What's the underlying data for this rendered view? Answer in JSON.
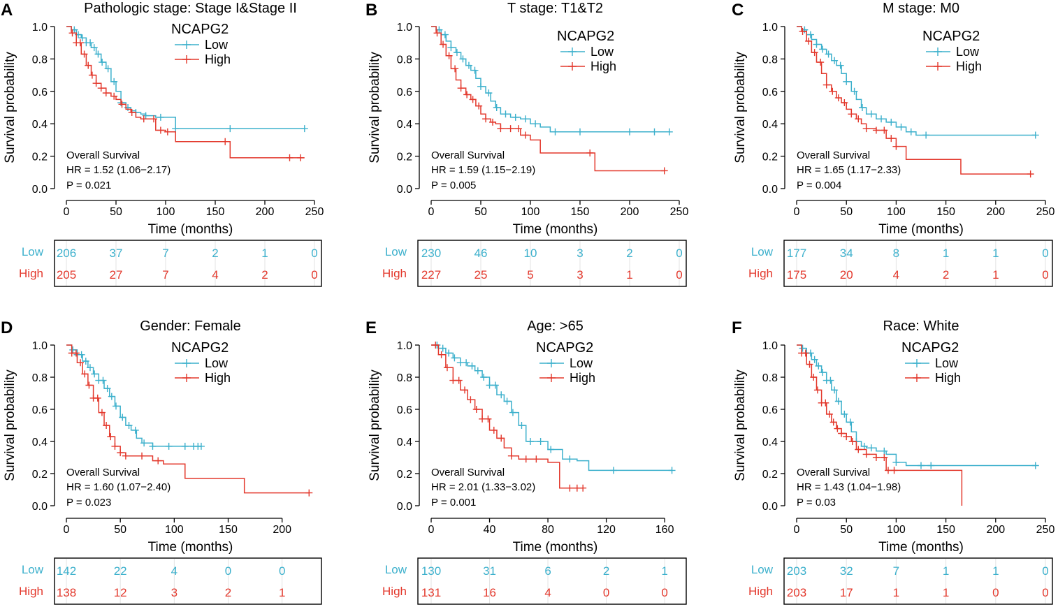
{
  "colors": {
    "low": "#3cb0cc",
    "high": "#e3382c",
    "axis": "#000000"
  },
  "labels": {
    "ylabel": "Survival probability",
    "xlabel": "Time (months)",
    "legend_title": "NCAPG2",
    "low": "Low",
    "high": "High",
    "overall_survival": "Overall Survival"
  },
  "chart_data": [
    {
      "panel": "A",
      "type": "line",
      "title": "Pathologic stage: Stage I&Stage II",
      "xlabel": "Time (months)",
      "ylabel": "Survival probability",
      "xlim": [
        0,
        250
      ],
      "ylim": [
        0,
        1
      ],
      "x_ticks": [
        "0",
        "50",
        "100",
        "150",
        "200",
        "250"
      ],
      "y_ticks": [
        "0.0",
        "0.2",
        "0.4",
        "0.6",
        "0.8",
        "1.0"
      ],
      "legend_title": "NCAPG2",
      "legend_position": "top-center",
      "hr": "HR = 1.52 (1.06−2.17)",
      "p": "P = 0.021",
      "series": [
        {
          "name": "Low",
          "color": "#3cb0cc",
          "x": [
            0,
            5,
            10,
            15,
            20,
            25,
            30,
            35,
            40,
            45,
            50,
            55,
            60,
            65,
            70,
            75,
            80,
            90,
            100,
            110,
            150,
            200,
            240
          ],
          "y": [
            1,
            0.98,
            0.95,
            0.93,
            0.9,
            0.87,
            0.83,
            0.78,
            0.74,
            0.66,
            0.6,
            0.53,
            0.5,
            0.48,
            0.47,
            0.46,
            0.45,
            0.44,
            0.44,
            0.37,
            0.37,
            0.37,
            0.37
          ],
          "censors": [
            8,
            12,
            16,
            20,
            24,
            28,
            32,
            36,
            42,
            48,
            55,
            62,
            70,
            80,
            95,
            110,
            165,
            240
          ]
        },
        {
          "name": "High",
          "color": "#e3382c",
          "x": [
            0,
            5,
            10,
            15,
            20,
            25,
            30,
            35,
            40,
            45,
            50,
            55,
            60,
            65,
            70,
            75,
            80,
            90,
            100,
            110,
            165,
            240
          ],
          "y": [
            1,
            0.96,
            0.9,
            0.83,
            0.76,
            0.7,
            0.65,
            0.62,
            0.59,
            0.57,
            0.55,
            0.52,
            0.49,
            0.47,
            0.44,
            0.43,
            0.43,
            0.36,
            0.35,
            0.29,
            0.19,
            0.19
          ],
          "censors": [
            6,
            10,
            14,
            18,
            22,
            26,
            30,
            35,
            40,
            48,
            56,
            66,
            78,
            88,
            95,
            102,
            160,
            225,
            236
          ]
        }
      ],
      "risk_table": {
        "low": [
          "206",
          "37",
          "7",
          "2",
          "1",
          "0"
        ],
        "high": [
          "205",
          "27",
          "7",
          "4",
          "2",
          "0"
        ]
      }
    },
    {
      "panel": "B",
      "type": "line",
      "title": "T stage: T1&T2",
      "xlabel": "Time (months)",
      "ylabel": "Survival probability",
      "xlim": [
        0,
        250
      ],
      "ylim": [
        0,
        1
      ],
      "x_ticks": [
        "0",
        "50",
        "100",
        "150",
        "200",
        "250"
      ],
      "y_ticks": [
        "0.0",
        "0.2",
        "0.4",
        "0.6",
        "0.8",
        "1.0"
      ],
      "legend_title": "NCAPG2",
      "legend_position": "top-right",
      "hr": "HR = 1.59 (1.15−2.19)",
      "p": "P = 0.005",
      "series": [
        {
          "name": "Low",
          "color": "#3cb0cc",
          "x": [
            0,
            5,
            10,
            15,
            20,
            25,
            30,
            35,
            40,
            45,
            50,
            55,
            60,
            65,
            70,
            80,
            90,
            100,
            110,
            120,
            240
          ],
          "y": [
            1,
            0.98,
            0.95,
            0.91,
            0.87,
            0.84,
            0.8,
            0.76,
            0.73,
            0.68,
            0.63,
            0.59,
            0.54,
            0.5,
            0.46,
            0.44,
            0.43,
            0.4,
            0.38,
            0.35,
            0.35
          ],
          "censors": [
            8,
            14,
            20,
            26,
            32,
            38,
            44,
            50,
            58,
            66,
            75,
            85,
            95,
            105,
            125,
            150,
            200,
            225,
            240
          ]
        },
        {
          "name": "High",
          "color": "#e3382c",
          "x": [
            0,
            5,
            10,
            15,
            20,
            25,
            30,
            35,
            40,
            45,
            50,
            55,
            60,
            65,
            70,
            80,
            90,
            100,
            110,
            150,
            165,
            235
          ],
          "y": [
            1,
            0.96,
            0.89,
            0.82,
            0.74,
            0.67,
            0.62,
            0.58,
            0.55,
            0.51,
            0.46,
            0.43,
            0.41,
            0.4,
            0.37,
            0.37,
            0.33,
            0.3,
            0.22,
            0.22,
            0.11,
            0.11
          ],
          "censors": [
            6,
            12,
            18,
            24,
            30,
            36,
            42,
            48,
            55,
            62,
            70,
            80,
            88,
            95,
            160,
            235
          ]
        }
      ],
      "risk_table": {
        "low": [
          "230",
          "46",
          "10",
          "3",
          "2",
          "0"
        ],
        "high": [
          "227",
          "25",
          "5",
          "3",
          "1",
          "0"
        ]
      }
    },
    {
      "panel": "C",
      "type": "line",
      "title": "M stage: M0",
      "xlabel": "Time (months)",
      "ylabel": "Survival probability",
      "xlim": [
        0,
        250
      ],
      "ylim": [
        0,
        1
      ],
      "x_ticks": [
        "0",
        "50",
        "100",
        "150",
        "200",
        "250"
      ],
      "y_ticks": [
        "0.0",
        "0.2",
        "0.4",
        "0.6",
        "0.8",
        "1.0"
      ],
      "legend_title": "NCAPG2",
      "legend_position": "top-right",
      "hr": "HR = 1.65 (1.17−2.33)",
      "p": "P = 0.004",
      "series": [
        {
          "name": "Low",
          "color": "#3cb0cc",
          "x": [
            0,
            5,
            10,
            15,
            20,
            25,
            30,
            35,
            40,
            45,
            50,
            55,
            60,
            65,
            70,
            80,
            90,
            100,
            110,
            120,
            240
          ],
          "y": [
            1,
            0.98,
            0.95,
            0.92,
            0.89,
            0.86,
            0.83,
            0.79,
            0.76,
            0.71,
            0.66,
            0.6,
            0.55,
            0.5,
            0.46,
            0.43,
            0.41,
            0.38,
            0.35,
            0.33,
            0.33
          ],
          "censors": [
            8,
            14,
            20,
            26,
            32,
            38,
            44,
            50,
            58,
            66,
            75,
            85,
            95,
            105,
            115,
            130,
            240
          ]
        },
        {
          "name": "High",
          "color": "#e3382c",
          "x": [
            0,
            5,
            10,
            15,
            20,
            25,
            30,
            35,
            40,
            45,
            50,
            55,
            60,
            65,
            70,
            80,
            90,
            100,
            110,
            165,
            235
          ],
          "y": [
            1,
            0.97,
            0.91,
            0.84,
            0.78,
            0.71,
            0.64,
            0.6,
            0.56,
            0.53,
            0.49,
            0.46,
            0.43,
            0.4,
            0.37,
            0.36,
            0.31,
            0.26,
            0.18,
            0.09,
            0.09
          ],
          "censors": [
            6,
            12,
            18,
            24,
            30,
            36,
            42,
            48,
            55,
            62,
            70,
            80,
            88,
            95,
            100,
            235
          ]
        }
      ],
      "risk_table": {
        "low": [
          "177",
          "34",
          "8",
          "1",
          "1",
          "0"
        ],
        "high": [
          "175",
          "20",
          "4",
          "2",
          "1",
          "0"
        ]
      }
    },
    {
      "panel": "D",
      "type": "line",
      "title": "Gender: Female",
      "xlabel": "Time (months)",
      "ylabel": "Survival probability",
      "xlim": [
        0,
        230
      ],
      "ylim": [
        0,
        1
      ],
      "x_ticks": [
        "0",
        "50",
        "100",
        "150",
        "200"
      ],
      "y_ticks": [
        "0.0",
        "0.2",
        "0.4",
        "0.6",
        "0.8",
        "1.0"
      ],
      "legend_title": "NCAPG2",
      "legend_position": "top-center",
      "hr": "HR = 1.60 (1.07−2.40)",
      "p": "P = 0.023",
      "series": [
        {
          "name": "Low",
          "color": "#3cb0cc",
          "x": [
            0,
            5,
            10,
            15,
            20,
            25,
            30,
            35,
            40,
            45,
            50,
            55,
            60,
            65,
            70,
            80,
            125
          ],
          "y": [
            1,
            0.97,
            0.94,
            0.9,
            0.86,
            0.82,
            0.78,
            0.73,
            0.68,
            0.62,
            0.55,
            0.5,
            0.47,
            0.42,
            0.39,
            0.37,
            0.37
          ],
          "censors": [
            6,
            10,
            14,
            18,
            22,
            26,
            30,
            34,
            38,
            42,
            46,
            52,
            58,
            64,
            72,
            80,
            95,
            110,
            118,
            122,
            125
          ]
        },
        {
          "name": "High",
          "color": "#e3382c",
          "x": [
            0,
            5,
            10,
            15,
            20,
            25,
            30,
            35,
            40,
            45,
            50,
            55,
            60,
            80,
            90,
            110,
            165,
            225
          ],
          "y": [
            1,
            0.95,
            0.89,
            0.82,
            0.75,
            0.67,
            0.58,
            0.5,
            0.43,
            0.37,
            0.33,
            0.31,
            0.31,
            0.28,
            0.26,
            0.17,
            0.08,
            0.08
          ],
          "censors": [
            5,
            9,
            13,
            17,
            21,
            25,
            29,
            33,
            37,
            41,
            45,
            50,
            55,
            70,
            85,
            225
          ]
        }
      ],
      "risk_table": {
        "low": [
          "142",
          "22",
          "4",
          "0",
          "0"
        ],
        "high": [
          "138",
          "12",
          "3",
          "2",
          "1"
        ]
      }
    },
    {
      "panel": "E",
      "type": "line",
      "title": "Age: >65",
      "xlabel": "Time (months)",
      "ylabel": "Survival probability",
      "xlim": [
        0,
        170
      ],
      "ylim": [
        0,
        1
      ],
      "x_ticks": [
        "0",
        "40",
        "80",
        "120",
        "160"
      ],
      "y_ticks": [
        "0.0",
        "0.2",
        "0.4",
        "0.6",
        "0.8",
        "1.0"
      ],
      "legend_title": "NCAPG2",
      "legend_position": "top-center",
      "hr": "HR = 2.01 (1.33−3.02)",
      "p": "P = 0.001",
      "series": [
        {
          "name": "Low",
          "color": "#3cb0cc",
          "x": [
            0,
            5,
            10,
            15,
            20,
            25,
            30,
            35,
            40,
            45,
            50,
            55,
            60,
            65,
            70,
            80,
            90,
            100,
            108,
            165
          ],
          "y": [
            1,
            0.98,
            0.95,
            0.92,
            0.89,
            0.87,
            0.84,
            0.8,
            0.75,
            0.69,
            0.65,
            0.58,
            0.5,
            0.4,
            0.4,
            0.35,
            0.29,
            0.28,
            0.22,
            0.22
          ],
          "censors": [
            4,
            8,
            12,
            16,
            20,
            24,
            28,
            32,
            36,
            40,
            44,
            48,
            52,
            56,
            62,
            68,
            75,
            82,
            95,
            125,
            165
          ]
        },
        {
          "name": "High",
          "color": "#e3382c",
          "x": [
            0,
            5,
            10,
            15,
            20,
            25,
            30,
            35,
            40,
            45,
            50,
            55,
            60,
            80,
            88,
            100,
            104
          ],
          "y": [
            1,
            0.94,
            0.86,
            0.78,
            0.72,
            0.66,
            0.6,
            0.54,
            0.47,
            0.42,
            0.36,
            0.31,
            0.29,
            0.27,
            0.11,
            0.11,
            0.11
          ],
          "censors": [
            3,
            7,
            11,
            15,
            19,
            23,
            27,
            31,
            35,
            39,
            43,
            48,
            55,
            65,
            72,
            95,
            100,
            104
          ]
        }
      ],
      "risk_table": {
        "low": [
          "130",
          "31",
          "6",
          "2",
          "1"
        ],
        "high": [
          "131",
          "16",
          "4",
          "0",
          "0"
        ]
      }
    },
    {
      "panel": "F",
      "type": "line",
      "title": "Race: White",
      "xlabel": "Time (months)",
      "ylabel": "Survival probability",
      "xlim": [
        0,
        250
      ],
      "ylim": [
        0,
        1
      ],
      "x_ticks": [
        "0",
        "50",
        "100",
        "150",
        "200",
        "250"
      ],
      "y_ticks": [
        "0.0",
        "0.2",
        "0.4",
        "0.6",
        "0.8",
        "1.0"
      ],
      "legend_title": "NCAPG2",
      "legend_position": "top-center",
      "hr": "HR = 1.43 (1.04−1.98)",
      "p": "P = 0.03",
      "series": [
        {
          "name": "Low",
          "color": "#3cb0cc",
          "x": [
            0,
            5,
            10,
            15,
            20,
            25,
            30,
            35,
            40,
            45,
            50,
            55,
            60,
            65,
            70,
            80,
            90,
            100,
            110,
            120,
            240
          ],
          "y": [
            1,
            0.98,
            0.95,
            0.91,
            0.87,
            0.83,
            0.78,
            0.72,
            0.65,
            0.57,
            0.52,
            0.46,
            0.4,
            0.37,
            0.36,
            0.34,
            0.32,
            0.27,
            0.25,
            0.25,
            0.25
          ],
          "censors": [
            6,
            10,
            14,
            18,
            22,
            26,
            30,
            34,
            38,
            42,
            48,
            54,
            60,
            68,
            75,
            88,
            100,
            125,
            135,
            240
          ]
        },
        {
          "name": "High",
          "color": "#e3382c",
          "x": [
            0,
            5,
            10,
            15,
            20,
            25,
            30,
            35,
            40,
            45,
            50,
            55,
            60,
            70,
            80,
            90,
            165,
            166
          ],
          "y": [
            1,
            0.95,
            0.88,
            0.8,
            0.72,
            0.64,
            0.57,
            0.52,
            0.48,
            0.45,
            0.43,
            0.4,
            0.35,
            0.32,
            0.3,
            0.22,
            0.22,
            0.0
          ],
          "censors": [
            5,
            9,
            13,
            17,
            21,
            25,
            29,
            33,
            37,
            41,
            45,
            50,
            56,
            62,
            70,
            80,
            88,
            92,
            98
          ]
        }
      ],
      "risk_table": {
        "low": [
          "203",
          "32",
          "7",
          "1",
          "1",
          "0"
        ],
        "high": [
          "203",
          "17",
          "1",
          "1",
          "0",
          "0"
        ]
      }
    }
  ]
}
